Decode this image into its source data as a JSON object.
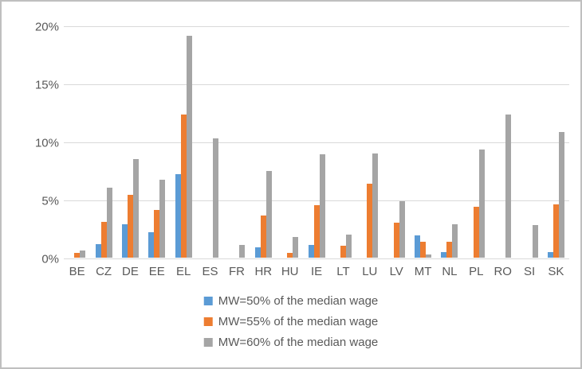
{
  "chart_data": {
    "type": "bar",
    "title": "",
    "categories": [
      "BE",
      "CZ",
      "DE",
      "EE",
      "EL",
      "ES",
      "FR",
      "HR",
      "HU",
      "IE",
      "LT",
      "LU",
      "LV",
      "MT",
      "NL",
      "PL",
      "RO",
      "SI",
      "SK"
    ],
    "series": [
      {
        "name": "MW=50% of the median wage",
        "color": "#5B9BD5",
        "values": [
          0,
          1.2,
          2.9,
          2.2,
          7.2,
          0,
          0,
          0.9,
          0,
          1.1,
          0,
          0,
          0,
          1.9,
          0.5,
          0,
          0,
          0,
          0.5
        ]
      },
      {
        "name": "MW=55% of the median wage",
        "color": "#ED7D31",
        "values": [
          0.4,
          3.1,
          5.4,
          4.1,
          12.3,
          0,
          0,
          3.6,
          0.4,
          4.5,
          1.0,
          6.4,
          3.0,
          1.4,
          1.4,
          4.4,
          0,
          0,
          4.6
        ]
      },
      {
        "name": "MW=60% of the median wage",
        "color": "#A5A5A5",
        "values": [
          0.6,
          6.0,
          8.5,
          6.7,
          19.1,
          10.3,
          1.1,
          7.5,
          1.8,
          8.9,
          2.0,
          9.0,
          4.9,
          0.3,
          2.9,
          9.3,
          12.3,
          2.8,
          10.8
        ]
      }
    ],
    "ylim": [
      0,
      20
    ],
    "yticks": [
      {
        "value": 0,
        "label": "0%"
      },
      {
        "value": 5,
        "label": "5%"
      },
      {
        "value": 10,
        "label": "10%"
      },
      {
        "value": 15,
        "label": "15%"
      },
      {
        "value": 20,
        "label": "20%"
      }
    ],
    "grid": true,
    "legend_position": "bottom",
    "xlabel": "",
    "ylabel": ""
  },
  "colors": {
    "gridline": "#D9D9D9",
    "axis_text": "#595959",
    "frame_border": "#BFBFBF",
    "background": "#FFFFFF"
  }
}
